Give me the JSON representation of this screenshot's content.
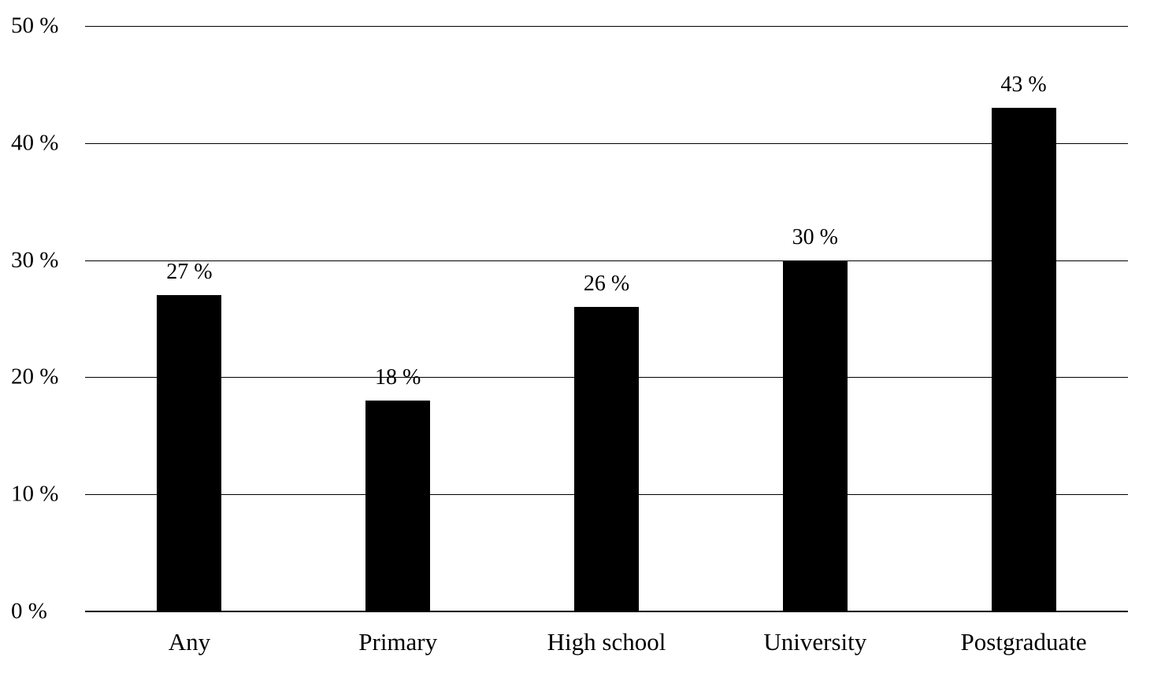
{
  "chart_data": {
    "type": "bar",
    "title": "",
    "xlabel": "",
    "ylabel": "",
    "categories": [
      "Any",
      "Primary",
      "High school",
      "University",
      "Postgraduate"
    ],
    "values": [
      27,
      18,
      26,
      30,
      43
    ],
    "value_labels": [
      "27 %",
      "18 %",
      "26 %",
      "30 %",
      "43 %"
    ],
    "ylim": [
      0,
      50
    ],
    "y_ticks": [
      0,
      10,
      20,
      30,
      40,
      50
    ],
    "y_tick_labels": [
      "0 %",
      "10 %",
      "20 %",
      "30 %",
      "40 %",
      "50 %"
    ],
    "grid": true,
    "legend": false,
    "legend_position": "none",
    "bar_color": "#000000",
    "grid_color": "#000000",
    "background_color": "#ffffff"
  }
}
